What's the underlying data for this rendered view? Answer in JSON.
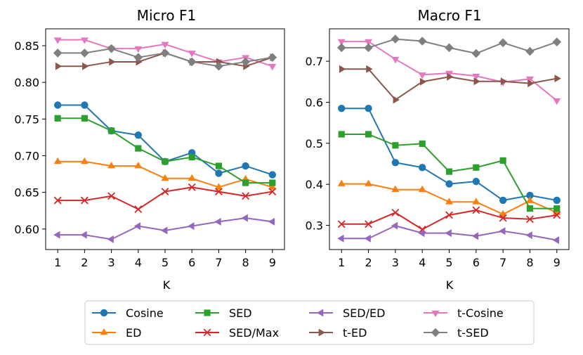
{
  "chart_data": [
    {
      "type": "line",
      "title": "Micro F1",
      "xlabel": "K",
      "ylabel": "",
      "x": [
        1,
        2,
        3,
        4,
        5,
        6,
        7,
        8,
        9
      ],
      "xticks": [
        "1",
        "2",
        "3",
        "4",
        "5",
        "6",
        "7",
        "8",
        "9"
      ],
      "ylim": [
        0.572,
        0.873
      ],
      "yticks": [
        "0.60",
        "0.65",
        "0.70",
        "0.75",
        "0.80",
        "0.85"
      ],
      "ytick_values": [
        0.6,
        0.65,
        0.7,
        0.75,
        0.8,
        0.85
      ],
      "series": [
        {
          "name": "Cosine",
          "values": [
            0.769,
            0.769,
            0.734,
            0.728,
            0.692,
            0.704,
            0.676,
            0.686,
            0.674
          ]
        },
        {
          "name": "ED",
          "values": [
            0.692,
            0.692,
            0.686,
            0.686,
            0.669,
            0.669,
            0.657,
            0.668,
            0.657
          ]
        },
        {
          "name": "SED",
          "values": [
            0.751,
            0.751,
            0.734,
            0.71,
            0.692,
            0.698,
            0.686,
            0.663,
            0.663
          ]
        },
        {
          "name": "SED/Max",
          "values": [
            0.639,
            0.639,
            0.645,
            0.627,
            0.651,
            0.657,
            0.651,
            0.645,
            0.651
          ]
        },
        {
          "name": "SED/ED",
          "values": [
            0.592,
            0.592,
            0.586,
            0.604,
            0.598,
            0.604,
            0.61,
            0.615,
            0.61
          ]
        },
        {
          "name": "t-Cosine",
          "values": [
            0.858,
            0.858,
            0.846,
            0.846,
            0.852,
            0.84,
            0.828,
            0.834,
            0.822
          ]
        },
        {
          "name": "t-ED",
          "values": [
            0.822,
            0.822,
            0.828,
            0.828,
            0.84,
            0.828,
            0.828,
            0.822,
            0.834
          ]
        },
        {
          "name": "t-SED",
          "values": [
            0.84,
            0.84,
            0.846,
            0.834,
            0.84,
            0.828,
            0.822,
            0.828,
            0.834
          ]
        }
      ]
    },
    {
      "type": "line",
      "title": "Macro F1",
      "xlabel": "K",
      "ylabel": "",
      "x": [
        1,
        2,
        3,
        4,
        5,
        6,
        7,
        8,
        9
      ],
      "xticks": [
        "1",
        "2",
        "3",
        "4",
        "5",
        "6",
        "7",
        "8",
        "9"
      ],
      "ylim": [
        0.241,
        0.779
      ],
      "yticks": [
        "0.3",
        "0.4",
        "0.5",
        "0.6",
        "0.7"
      ],
      "ytick_values": [
        0.3,
        0.4,
        0.5,
        0.6,
        0.7
      ],
      "series": [
        {
          "name": "Cosine",
          "values": [
            0.585,
            0.585,
            0.453,
            0.441,
            0.401,
            0.407,
            0.361,
            0.373,
            0.361
          ]
        },
        {
          "name": "ED",
          "values": [
            0.401,
            0.401,
            0.387,
            0.387,
            0.357,
            0.357,
            0.327,
            0.36,
            0.331
          ]
        },
        {
          "name": "SED",
          "values": [
            0.522,
            0.522,
            0.495,
            0.499,
            0.431,
            0.441,
            0.458,
            0.341,
            0.341
          ]
        },
        {
          "name": "SED/Max",
          "values": [
            0.303,
            0.303,
            0.331,
            0.29,
            0.325,
            0.337,
            0.318,
            0.315,
            0.325
          ]
        },
        {
          "name": "SED/ED",
          "values": [
            0.268,
            0.268,
            0.299,
            0.281,
            0.281,
            0.274,
            0.286,
            0.276,
            0.264
          ]
        },
        {
          "name": "t-Cosine",
          "values": [
            0.748,
            0.748,
            0.705,
            0.667,
            0.671,
            0.664,
            0.649,
            0.657,
            0.604
          ]
        },
        {
          "name": "t-ED",
          "values": [
            0.681,
            0.681,
            0.606,
            0.65,
            0.662,
            0.651,
            0.651,
            0.646,
            0.658
          ]
        },
        {
          "name": "t-SED",
          "values": [
            0.733,
            0.733,
            0.754,
            0.749,
            0.733,
            0.719,
            0.745,
            0.724,
            0.747
          ]
        }
      ]
    }
  ],
  "legend": {
    "columns": [
      [
        "Cosine",
        "ED"
      ],
      [
        "SED",
        "SED/Max"
      ],
      [
        "SED/ED",
        "t-ED"
      ],
      [
        "t-Cosine",
        "t-SED"
      ]
    ]
  },
  "styles": {
    "Cosine": {
      "color": "#1f77b4",
      "marker": "circle"
    },
    "ED": {
      "color": "#ff7f0e",
      "marker": "triangle-up"
    },
    "SED": {
      "color": "#2ca02c",
      "marker": "square"
    },
    "SED/Max": {
      "color": "#d62728",
      "marker": "x"
    },
    "SED/ED": {
      "color": "#9467bd",
      "marker": "triangle-left"
    },
    "t-Cosine": {
      "color": "#e377c2",
      "marker": "triangle-down"
    },
    "t-ED": {
      "color": "#8c564b",
      "marker": "triangle-right"
    },
    "t-SED": {
      "color": "#7f7f7f",
      "marker": "diamond"
    }
  }
}
